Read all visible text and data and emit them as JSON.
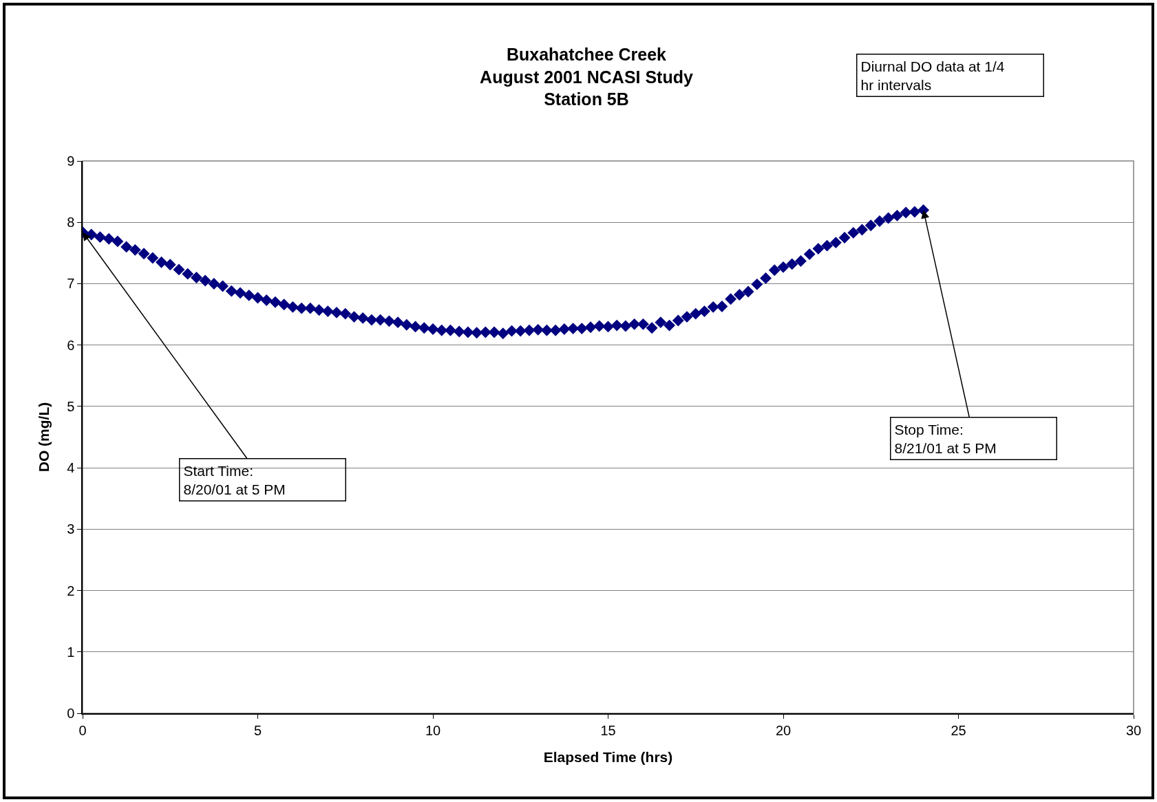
{
  "chart_data": {
    "type": "scatter",
    "title": "Buxahatchee Creek\nAugust 2001 NCASI Study\nStation 5B",
    "xlabel": "Elapsed Time (hrs)",
    "ylabel": "DO (mg/L)",
    "x": [
      0,
      0.25,
      0.5,
      0.75,
      1,
      1.25,
      1.5,
      1.75,
      2,
      2.25,
      2.5,
      2.75,
      3,
      3.25,
      3.5,
      3.75,
      4,
      4.25,
      4.5,
      4.75,
      5,
      5.25,
      5.5,
      5.75,
      6,
      6.25,
      6.5,
      6.75,
      7,
      7.25,
      7.5,
      7.75,
      8,
      8.25,
      8.5,
      8.75,
      9,
      9.25,
      9.5,
      9.75,
      10,
      10.25,
      10.5,
      10.75,
      11,
      11.25,
      11.5,
      11.75,
      12,
      12.25,
      12.5,
      12.75,
      13,
      13.25,
      13.5,
      13.75,
      14,
      14.25,
      14.5,
      14.75,
      15,
      15.25,
      15.5,
      15.75,
      16,
      16.25,
      16.5,
      16.75,
      17,
      17.25,
      17.5,
      17.75,
      18,
      18.25,
      18.5,
      18.75,
      19,
      19.25,
      19.5,
      19.75,
      20,
      20.25,
      20.5,
      20.75,
      21,
      21.25,
      21.5,
      21.75,
      22,
      22.25,
      22.5,
      22.75,
      23,
      23.25,
      23.5,
      23.75,
      24
    ],
    "series": [
      {
        "color": "#000080",
        "values": [
          7.84,
          7.8,
          7.76,
          7.73,
          7.69,
          7.6,
          7.55,
          7.49,
          7.42,
          7.35,
          7.31,
          7.23,
          7.16,
          7.1,
          7.05,
          7.0,
          6.96,
          6.88,
          6.85,
          6.81,
          6.77,
          6.73,
          6.7,
          6.66,
          6.62,
          6.6,
          6.6,
          6.57,
          6.55,
          6.53,
          6.51,
          6.46,
          6.44,
          6.41,
          6.41,
          6.39,
          6.37,
          6.33,
          6.3,
          6.28,
          6.26,
          6.24,
          6.24,
          6.22,
          6.21,
          6.2,
          6.21,
          6.21,
          6.19,
          6.23,
          6.23,
          6.24,
          6.25,
          6.24,
          6.24,
          6.26,
          6.27,
          6.27,
          6.29,
          6.31,
          6.3,
          6.32,
          6.31,
          6.34,
          6.34,
          6.28,
          6.37,
          6.32,
          6.4,
          6.46,
          6.51,
          6.55,
          6.62,
          6.63,
          6.75,
          6.82,
          6.87,
          6.99,
          7.09,
          7.22,
          7.27,
          7.32,
          7.37,
          7.48,
          7.57,
          7.62,
          7.67,
          7.75,
          7.83,
          7.88,
          7.95,
          8.02,
          8.07,
          8.11,
          8.16,
          8.17,
          8.2
        ]
      }
    ],
    "xlim": [
      0,
      30
    ],
    "xticks": [
      0,
      5,
      10,
      15,
      20,
      25,
      30
    ],
    "ylim": [
      0,
      9
    ],
    "yticks": [
      0,
      1,
      2,
      3,
      4,
      5,
      6,
      7,
      8,
      9
    ],
    "grid": "y",
    "legend": false,
    "marker": "diamond",
    "annotations": [
      "Diurnal DO data at 1/4\nhr intervals",
      {
        "text": "Start Time:\n8/20/01 at 5 PM",
        "x": 0,
        "y": 7.84
      },
      {
        "text": "Stop Time:\n8/21/01 at 5 PM",
        "x": 24,
        "y": 8.2
      }
    ]
  }
}
